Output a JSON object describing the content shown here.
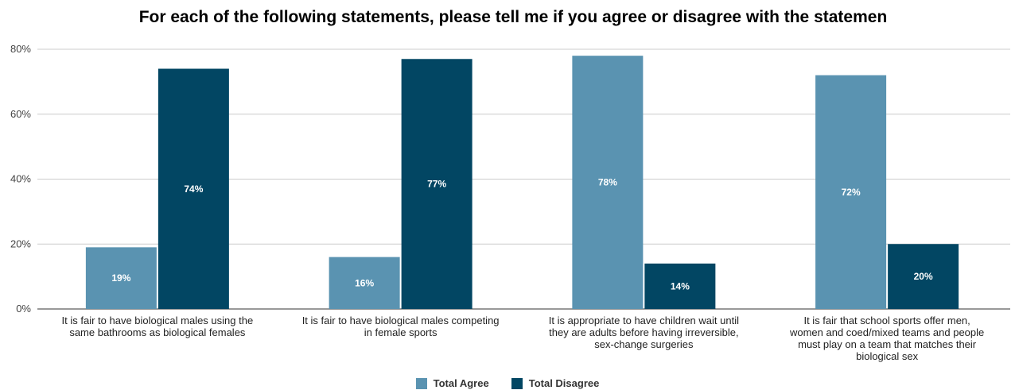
{
  "chart_data": {
    "type": "bar",
    "title": "For each of the following statements, please tell me if you agree or disagree with the statemen",
    "categories": [
      [
        "It is fair to have biological males using the",
        "same bathrooms as biological females"
      ],
      [
        "It is fair to have biological males competing",
        "in female sports"
      ],
      [
        "It is appropriate to have children wait until",
        "they are adults before having irreversible,",
        "sex-change surgeries"
      ],
      [
        "It is fair that school sports offer men,",
        "women and coed/mixed teams and people",
        "must play on a team that matches their",
        "biological sex"
      ]
    ],
    "series": [
      {
        "name": "Total Agree",
        "values": [
          19,
          16,
          78,
          72
        ],
        "labels": [
          "19%",
          "16%",
          "78%",
          "72%"
        ],
        "color": "#5a93b1"
      },
      {
        "name": "Total Disagree",
        "values": [
          74,
          77,
          14,
          20
        ],
        "labels": [
          "74%",
          "77%",
          "14%",
          "20%"
        ],
        "color": "#024663"
      }
    ],
    "yticks": [
      "0%",
      "20%",
      "40%",
      "60%",
      "80%"
    ],
    "ylim": [
      0,
      80
    ],
    "grid": true,
    "legend_position": "bottom"
  }
}
